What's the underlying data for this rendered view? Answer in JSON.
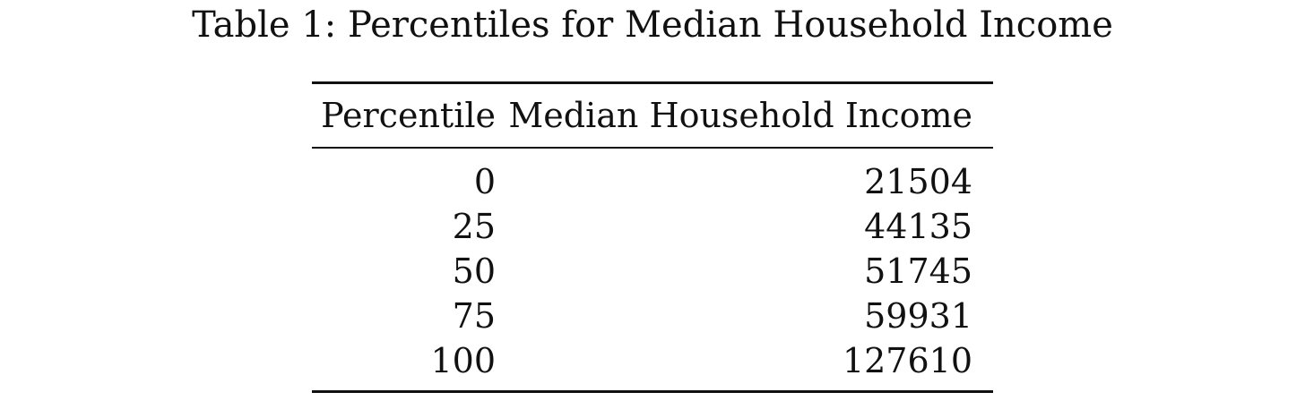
{
  "caption": "Table 1: Percentiles for Median Household Income",
  "table": {
    "headers": {
      "percentile": "Percentile",
      "income": "Median Household Income"
    },
    "rows": [
      {
        "percentile": "0",
        "income": "21504"
      },
      {
        "percentile": "25",
        "income": "44135"
      },
      {
        "percentile": "50",
        "income": "51745"
      },
      {
        "percentile": "75",
        "income": "59931"
      },
      {
        "percentile": "100",
        "income": "127610"
      }
    ]
  }
}
